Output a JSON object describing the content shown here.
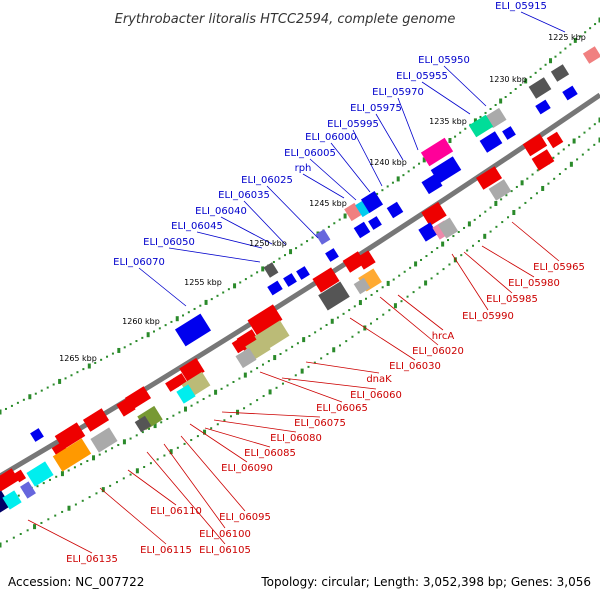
{
  "title": "Erythrobacter litoralis HTCC2594, complete genome",
  "footer": {
    "accession": "Accession: NC_007722",
    "summary": "Topology: circular; Length: 3,052,398 bp; Genes: 3,056"
  },
  "colors": {
    "backbone": "#777777",
    "tick_major": "#2a8a2a",
    "tick_minor": "#2a8a2a",
    "label_top": "#0000cc",
    "label_bottom": "#cc0000",
    "leader_top": "#0000cc",
    "leader_bottom": "#cc0000"
  },
  "kbp_marks": [
    "1225 kbp",
    "1230 kbp",
    "1235 kbp",
    "1240 kbp",
    "1245 kbp",
    "1250 kbp",
    "1255 kbp",
    "1260 kbp",
    "1265 kbp"
  ],
  "top_labels": [
    "ELI_05915",
    "ELI_05950",
    "ELI_05955",
    "ELI_05970",
    "ELI_05975",
    "ELI_05995",
    "ELI_06000",
    "ELI_06005",
    "rph",
    "ELI_06025",
    "ELI_06035",
    "ELI_06040",
    "ELI_06045",
    "ELI_06050",
    "ELI_06070"
  ],
  "bottom_labels": [
    "ELI_05965",
    "ELI_05980",
    "ELI_05985",
    "ELI_05990",
    "hrcA",
    "ELI_06020",
    "ELI_06030",
    "dnaK",
    "ELI_06060",
    "ELI_06065",
    "ELI_06075",
    "ELI_06080",
    "ELI_06085",
    "ELI_06090",
    "ELI_06095",
    "ELI_06100",
    "ELI_06105",
    "ELI_06110",
    "ELI_06115",
    "ELI_06135"
  ]
}
